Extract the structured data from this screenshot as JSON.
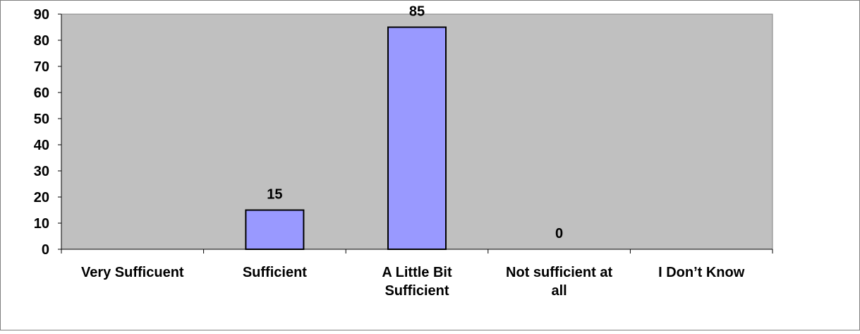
{
  "chart_data": {
    "type": "bar",
    "categories": [
      "Very Sufficuent",
      "Sufficient",
      "A Little Bit Sufficient",
      "Not sufficient at all",
      "I Don’t Know"
    ],
    "category_lines": [
      [
        "Very Sufficuent"
      ],
      [
        "Sufficient"
      ],
      [
        "A Little Bit",
        "Sufficient"
      ],
      [
        "Not sufficient at",
        "all"
      ],
      [
        "I Don’t Know"
      ]
    ],
    "values": [
      null,
      15,
      85,
      0,
      null
    ],
    "data_labels": [
      "",
      "15",
      "85",
      "0",
      ""
    ],
    "ylim": [
      0,
      90
    ],
    "yticks": [
      0,
      10,
      20,
      30,
      40,
      50,
      60,
      70,
      80,
      90
    ],
    "title": "",
    "xlabel": "",
    "ylabel": "",
    "grid": false,
    "legend": "none",
    "colors": {
      "plot_background": "#c0c0c0",
      "bar_fill": "#9999ff",
      "bar_stroke": "#000000",
      "frame": "#808080",
      "outer_border": "#808080"
    }
  }
}
